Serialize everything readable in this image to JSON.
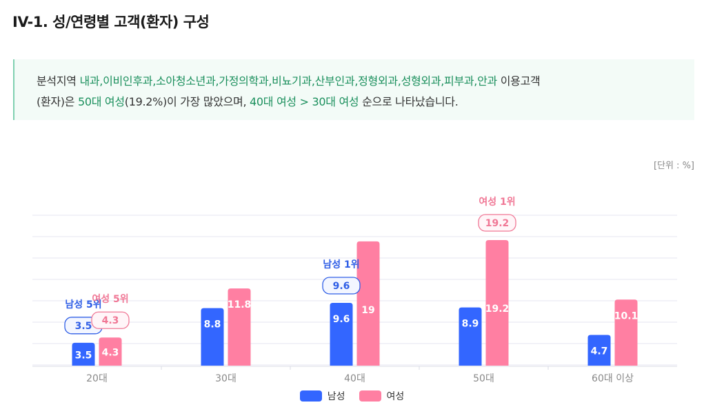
{
  "page": {
    "title": "IV-1. 성/연령별 고객(환자) 구성",
    "summary": {
      "p1": "분석지역 ",
      "departments": "내과,이비인후과,소아청소년과,가정의학과,비뇨기과,산부인과,정형외과,성형외과,피부과,안과",
      "p2": " 이용고객",
      "p3": "(환자)은 ",
      "top_group": "50대 여성",
      "p4": "(19.2%)이 가장 많았으며, ",
      "ranking": "40대 여성 > 30대 여성",
      "p5": " 순으로 나타났습니다."
    },
    "unit": "[단위 : %]"
  },
  "chart_data": {
    "type": "bar",
    "categories": [
      "20대",
      "30대",
      "40대",
      "50대",
      "60대 이상"
    ],
    "series": [
      {
        "name": "남성",
        "color": "#3366ff",
        "values": [
          3.5,
          8.8,
          9.6,
          8.9,
          4.7
        ],
        "value_labels": [
          "3.5",
          "8.8",
          "9.6",
          "8.9",
          "4.7"
        ]
      },
      {
        "name": "여성",
        "color": "#ff7fa2",
        "values": [
          4.3,
          11.8,
          19,
          19.2,
          10.1
        ],
        "value_labels": [
          "4.3",
          "11.8",
          "19",
          "19.2",
          "10.1"
        ]
      }
    ],
    "ylim": [
      0,
      23
    ],
    "grid": true,
    "legend_position": "bottom",
    "annotations": [
      {
        "series": 0,
        "category": 2,
        "label": "남성 1위",
        "value": "9.6"
      },
      {
        "series": 0,
        "category": 0,
        "label": "남성 5위",
        "value": "3.5"
      },
      {
        "series": 1,
        "category": 3,
        "label": "여성 1위",
        "value": "19.2"
      },
      {
        "series": 1,
        "category": 0,
        "label": "여성 5위",
        "value": "4.3"
      }
    ]
  }
}
